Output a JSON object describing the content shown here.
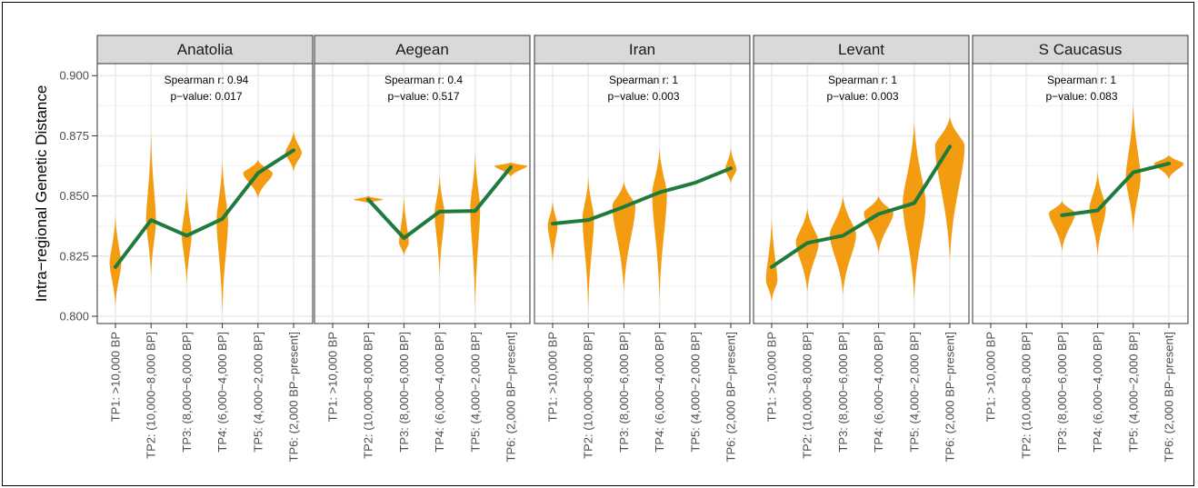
{
  "chart_data": {
    "type": "violin",
    "ylabel": "Intra−regional Genetic Distance",
    "ylim": [
      0.797,
      0.905
    ],
    "yticks": [
      0.8,
      0.825,
      0.85,
      0.875,
      0.9
    ],
    "ytick_labels": [
      "0.800",
      "0.825",
      "0.850",
      "0.875",
      "0.900"
    ],
    "categories": [
      "TP1: >10,000 BP",
      "TP2: (10,000−8,000 BP]",
      "TP3: (8,000−6,000 BP]",
      "TP4: (6,000−4,000 BP]",
      "TP5: (4,000−2,000 BP]",
      "TP6: (2,000 BP−present]"
    ],
    "colors": {
      "violin": "#f39c12",
      "trend": "#1e7b3c",
      "strip": "#d9d9d9",
      "grid": "#ebebeb"
    },
    "grid": true,
    "panels": [
      {
        "name": "Anatolia",
        "spearman": "Spearman r: 0.94",
        "pvalue": "p−value: 0.017",
        "medians": [
          0.8205,
          0.84,
          0.8335,
          0.8405,
          0.8595,
          0.869
        ],
        "violins": [
          {
            "x": 0,
            "min": 0.804,
            "max": 0.842,
            "center": 0.822,
            "width": 0.35
          },
          {
            "x": 1,
            "min": 0.816,
            "max": 0.876,
            "center": 0.84,
            "width": 0.3
          },
          {
            "x": 2,
            "min": 0.813,
            "max": 0.854,
            "center": 0.834,
            "width": 0.3
          },
          {
            "x": 3,
            "min": 0.801,
            "max": 0.865,
            "center": 0.84,
            "width": 0.35
          },
          {
            "x": 4,
            "min": 0.849,
            "max": 0.865,
            "center": 0.8595,
            "width": 0.9
          },
          {
            "x": 5,
            "min": 0.86,
            "max": 0.877,
            "center": 0.868,
            "width": 0.5
          }
        ]
      },
      {
        "name": "Aegean",
        "spearman": "Spearman r: 0.4",
        "pvalue": "p−value: 0.517",
        "medians": [
          null,
          0.8485,
          0.8325,
          0.8435,
          0.8438,
          0.862
        ],
        "violins": [
          {
            "x": 1,
            "min": 0.847,
            "max": 0.85,
            "center": 0.8485,
            "width": 0.9
          },
          {
            "x": 2,
            "min": 0.825,
            "max": 0.85,
            "center": 0.8305,
            "width": 0.3
          },
          {
            "x": 3,
            "min": 0.816,
            "max": 0.859,
            "center": 0.843,
            "width": 0.3
          },
          {
            "x": 4,
            "min": 0.803,
            "max": 0.868,
            "center": 0.845,
            "width": 0.3
          },
          {
            "x": 5,
            "min": 0.858,
            "max": 0.864,
            "center": 0.8625,
            "width": 1.0
          }
        ]
      },
      {
        "name": "Iran",
        "spearman": "Spearman r: 1",
        "pvalue": "p−value: 0.003",
        "medians": [
          0.8385,
          0.84,
          0.8455,
          0.8515,
          0.8555,
          0.8615
        ],
        "violins": [
          {
            "x": 0,
            "min": 0.822,
            "max": 0.848,
            "center": 0.838,
            "width": 0.3
          },
          {
            "x": 1,
            "min": 0.803,
            "max": 0.858,
            "center": 0.841,
            "width": 0.35
          },
          {
            "x": 2,
            "min": 0.81,
            "max": 0.856,
            "center": 0.846,
            "width": 0.7
          },
          {
            "x": 3,
            "min": 0.806,
            "max": 0.87,
            "center": 0.851,
            "width": 0.45
          },
          {
            "x": 5,
            "min": 0.855,
            "max": 0.87,
            "center": 0.861,
            "width": 0.35
          }
        ]
      },
      {
        "name": "Levant",
        "spearman": "Spearman r: 1",
        "pvalue": "p−value: 0.003",
        "medians": [
          0.8205,
          0.8305,
          0.8335,
          0.8425,
          0.847,
          0.8705
        ],
        "violins": [
          {
            "x": 0,
            "min": 0.806,
            "max": 0.841,
            "center": 0.815,
            "width": 0.35
          },
          {
            "x": 1,
            "min": 0.81,
            "max": 0.845,
            "center": 0.831,
            "width": 0.7
          },
          {
            "x": 2,
            "min": 0.809,
            "max": 0.85,
            "center": 0.834,
            "width": 0.8
          },
          {
            "x": 3,
            "min": 0.826,
            "max": 0.85,
            "center": 0.843,
            "width": 0.9
          },
          {
            "x": 4,
            "min": 0.807,
            "max": 0.881,
            "center": 0.847,
            "width": 0.7
          },
          {
            "x": 5,
            "min": 0.823,
            "max": 0.883,
            "center": 0.871,
            "width": 0.9
          }
        ]
      },
      {
        "name": "S Caucasus",
        "spearman": "Spearman r: 1",
        "pvalue": "p−value: 0.083",
        "medians": [
          null,
          null,
          0.842,
          0.844,
          0.8598,
          0.8635
        ],
        "violins": [
          {
            "x": 2,
            "min": 0.827,
            "max": 0.848,
            "center": 0.843,
            "width": 0.8
          },
          {
            "x": 3,
            "min": 0.825,
            "max": 0.86,
            "center": 0.845,
            "width": 0.5
          },
          {
            "x": 4,
            "min": 0.835,
            "max": 0.888,
            "center": 0.858,
            "width": 0.45
          },
          {
            "x": 5,
            "min": 0.857,
            "max": 0.867,
            "center": 0.8635,
            "width": 0.9
          }
        ]
      }
    ]
  }
}
